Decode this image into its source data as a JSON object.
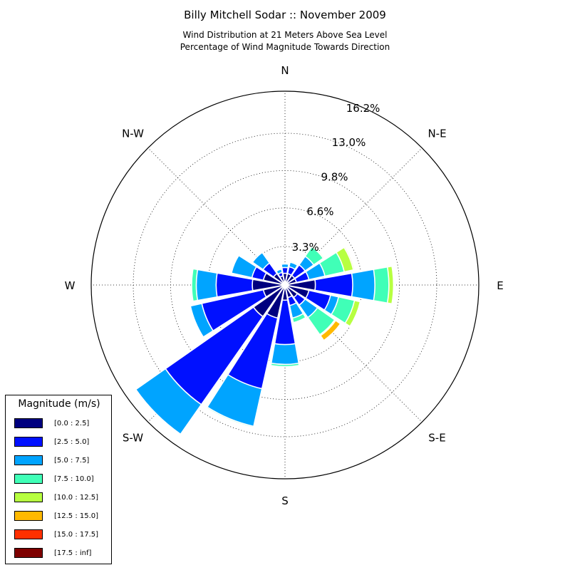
{
  "chart_data": {
    "type": "windrose",
    "title": "Billy Mitchell Sodar :: November 2009",
    "subtitle_lines": [
      "Wind Distribution at 21 Meters Above Sea Level",
      "Percentage of Wind Magnitude Towards Direction"
    ],
    "direction_labels": [
      "N",
      "N-E",
      "E",
      "S-E",
      "S",
      "S-W",
      "W",
      "N-W"
    ],
    "radial_ticks": [
      "3.3%",
      "6.6%",
      "9.8%",
      "13.0%",
      "16.2%"
    ],
    "radial_tick_values": [
      3.3,
      6.6,
      9.8,
      13.0,
      16.2
    ],
    "rmax": 16.6,
    "legend_title": "Magnitude (m/s)",
    "bins": [
      "[0.0 : 2.5]",
      "[2.5 : 5.0]",
      "[5.0 : 7.5]",
      "[7.5 : 10.0]",
      "[10.0 : 12.5]",
      "[12.5 : 15.0]",
      "[15.0 : 17.5]",
      "[17.5 : inf]"
    ],
    "colors": [
      "#00007f",
      "#0010ff",
      "#00a4ff",
      "#40ffb7",
      "#b7ff40",
      "#ffb900",
      "#ff3000",
      "#7f0000"
    ],
    "directions_deg": [
      0,
      22.5,
      45,
      67.5,
      90,
      112.5,
      135,
      157.5,
      180,
      202.5,
      225,
      247.5,
      270,
      292.5,
      315,
      337.5
    ],
    "cumulative": [
      [
        1.0,
        1.5,
        1.8,
        1.8,
        1.8,
        1.8,
        1.8,
        1.8
      ],
      [
        1.0,
        1.6,
        2.0,
        2.1,
        2.1,
        2.1,
        2.1,
        2.1
      ],
      [
        1.0,
        2.1,
        3.0,
        4.0,
        4.1,
        4.1,
        4.1,
        4.1
      ],
      [
        1.0,
        2.1,
        3.5,
        5.2,
        6.0,
        6.1,
        6.1,
        6.1
      ],
      [
        2.6,
        5.8,
        7.7,
        8.9,
        9.3,
        9.3,
        9.3,
        9.3
      ],
      [
        2.1,
        4.0,
        4.7,
        6.1,
        6.6,
        6.6,
        6.6,
        6.6
      ],
      [
        1.3,
        2.1,
        3.4,
        5.2,
        5.3,
        5.8,
        5.8,
        5.8
      ],
      [
        1.1,
        1.8,
        2.9,
        3.3,
        3.3,
        3.3,
        3.3,
        3.3
      ],
      [
        1.3,
        5.1,
        6.8,
        7.0,
        7.0,
        7.0,
        7.0,
        7.0
      ],
      [
        2.9,
        9.1,
        12.4,
        12.5,
        12.5,
        12.5,
        12.5,
        12.5
      ],
      [
        3.3,
        12.5,
        15.6,
        15.6,
        15.6,
        15.6,
        15.6,
        15.6
      ],
      [
        1.9,
        7.3,
        8.3,
        8.3,
        8.3,
        8.3,
        8.3,
        8.3
      ],
      [
        2.8,
        5.9,
        7.6,
        8.0,
        8.0,
        8.0,
        8.0,
        8.0
      ],
      [
        1.9,
        2.9,
        4.7,
        4.7,
        4.7,
        4.7,
        4.7,
        4.7
      ],
      [
        1.2,
        2.3,
        3.4,
        3.4,
        3.4,
        3.4,
        3.4,
        3.4
      ],
      [
        0.8,
        1.1,
        1.4,
        1.4,
        1.4,
        1.4,
        1.4,
        1.4
      ]
    ]
  }
}
